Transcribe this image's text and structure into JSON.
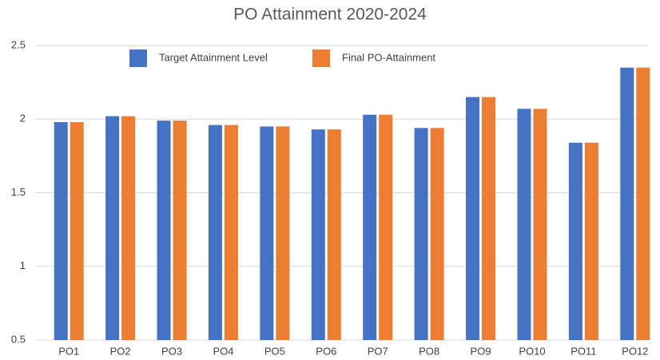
{
  "chart_data": {
    "type": "bar",
    "title": "PO Attainment 2020-2024",
    "categories": [
      "PO1",
      "PO2",
      "PO3",
      "PO4",
      "PO5",
      "PO6",
      "PO7",
      "PO8",
      "PO9",
      "PO10",
      "PO11",
      "PO12"
    ],
    "series": [
      {
        "name": "Target Attainment Level",
        "color": "#4472c4",
        "values": [
          1.98,
          2.02,
          1.99,
          1.96,
          1.95,
          1.93,
          2.03,
          1.94,
          2.15,
          2.07,
          1.84,
          2.35
        ]
      },
      {
        "name": "Final PO-Attainment",
        "color": "#ed7d31",
        "values": [
          1.98,
          2.02,
          1.99,
          1.96,
          1.95,
          1.93,
          2.03,
          1.94,
          2.15,
          2.07,
          1.84,
          2.35
        ]
      }
    ],
    "ylim": [
      0.5,
      2.5
    ],
    "yticks": [
      0.5,
      1,
      1.5,
      2,
      2.5
    ],
    "grid": true,
    "legend": "top"
  }
}
